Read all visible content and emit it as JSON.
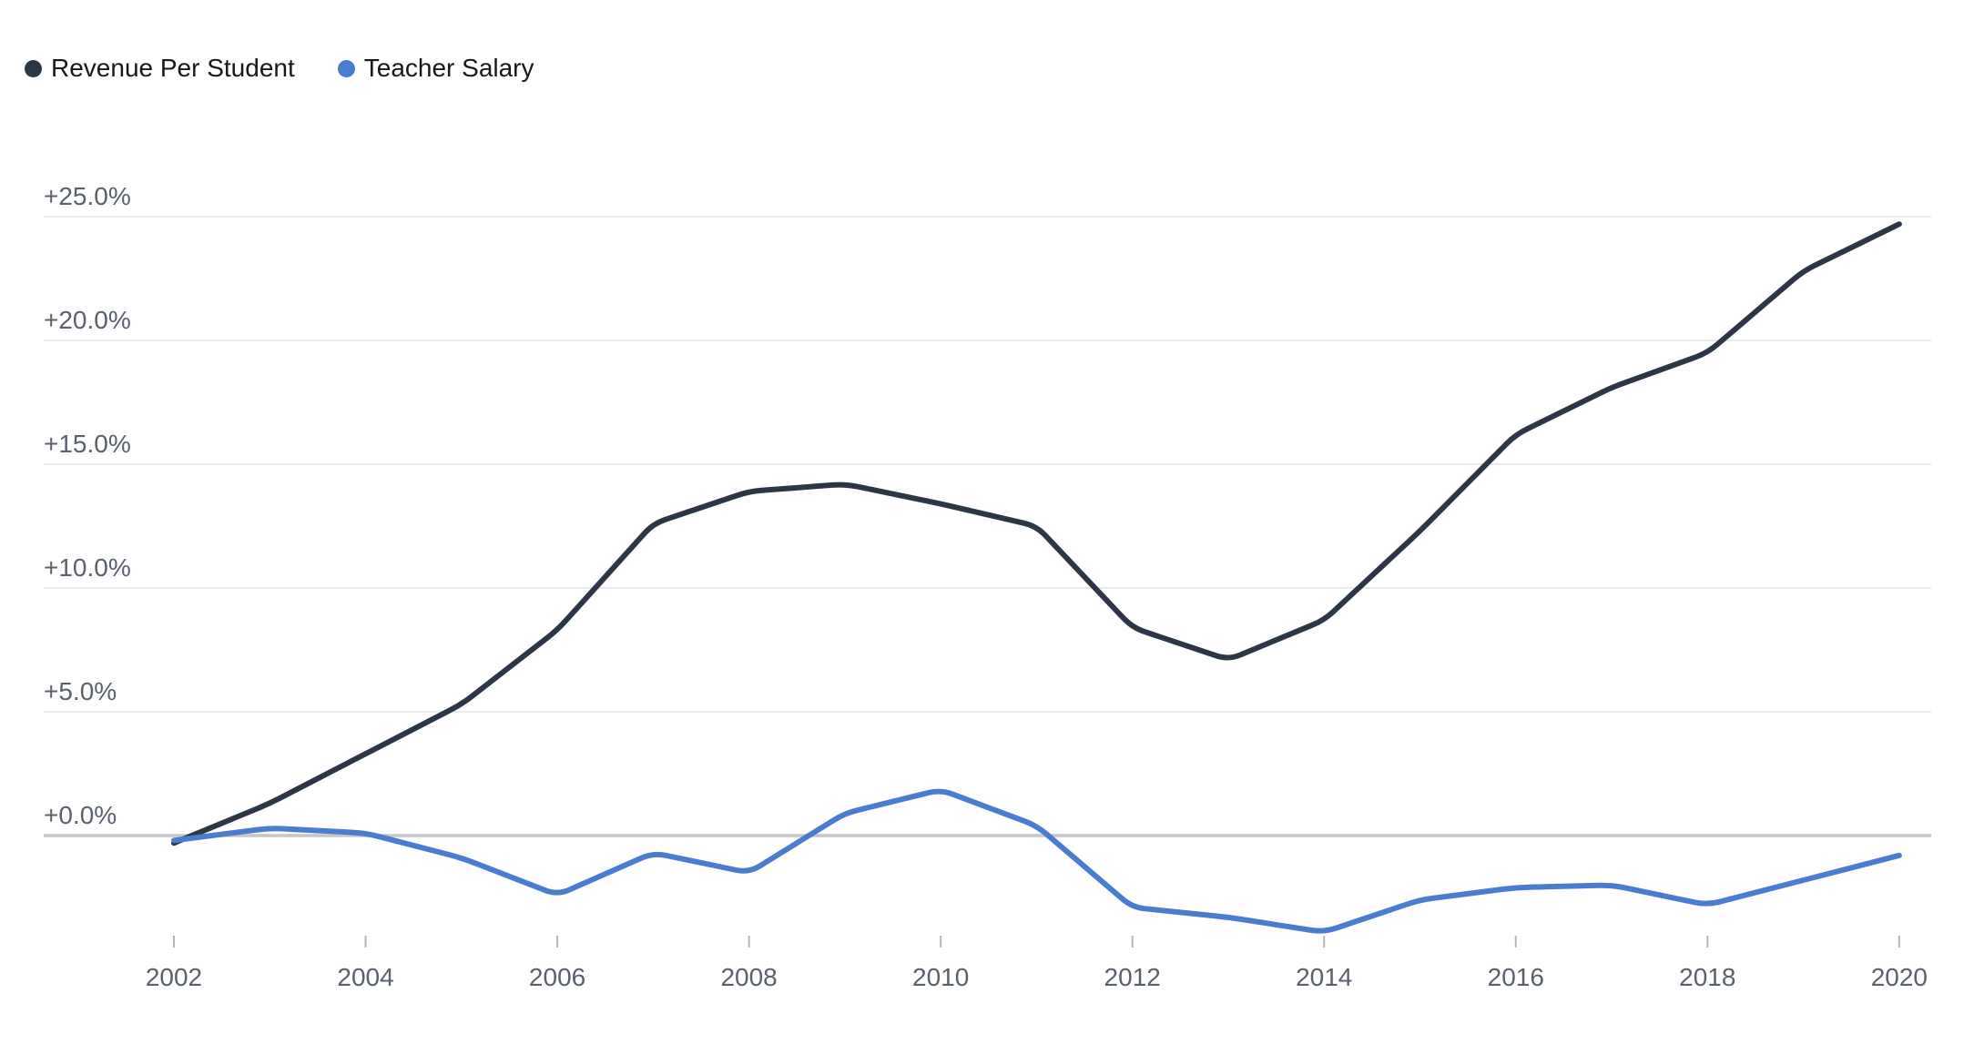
{
  "legend": {
    "items": [
      {
        "label": "Revenue Per Student",
        "color": "#2d3645"
      },
      {
        "label": "Teacher Salary",
        "color": "#4a7dd0"
      }
    ]
  },
  "chart_data": {
    "type": "line",
    "x": [
      2002,
      2003,
      2004,
      2005,
      2006,
      2007,
      2008,
      2009,
      2010,
      2011,
      2012,
      2013,
      2014,
      2015,
      2016,
      2017,
      2018,
      2019,
      2020
    ],
    "series": [
      {
        "name": "Revenue Per Student",
        "color": "#2d3645",
        "values": [
          -0.3,
          1.3,
          3.3,
          5.3,
          8.3,
          12.6,
          13.9,
          14.2,
          13.4,
          12.5,
          8.4,
          7.1,
          8.7,
          12.3,
          16.2,
          18.1,
          19.5,
          22.8,
          24.7
        ]
      },
      {
        "name": "Teacher Salary",
        "color": "#4a7dd0",
        "values": [
          -0.2,
          0.3,
          0.1,
          -0.9,
          -2.4,
          -0.7,
          -1.5,
          0.9,
          1.85,
          0.4,
          -2.9,
          -3.3,
          -3.9,
          -2.6,
          -2.1,
          -2.0,
          -2.8,
          -1.8,
          -0.8
        ]
      }
    ],
    "y_ticks": [
      0,
      5,
      10,
      15,
      20,
      25
    ],
    "y_tick_labels": [
      "+0.0%",
      "+5.0%",
      "+10.0%",
      "+15.0%",
      "+20.0%",
      "+25.0%"
    ],
    "x_ticks": [
      2002,
      2004,
      2006,
      2008,
      2010,
      2012,
      2014,
      2016,
      2018,
      2020
    ],
    "x_tick_labels": [
      "2002",
      "2004",
      "2006",
      "2008",
      "2010",
      "2012",
      "2014",
      "2016",
      "2018",
      "2020"
    ],
    "title": "",
    "xlabel": "",
    "ylabel": "",
    "ylim": [
      -5.0,
      26.5
    ],
    "grid": "horizontal-only",
    "legend_position": "top-left",
    "gridline_color": "#e4e4e6",
    "zero_line_color": "#c6c6c8",
    "axis_label_color": "#59616e",
    "tick_mark_color": "#b3b7bd",
    "background_color": "#ffffff"
  }
}
